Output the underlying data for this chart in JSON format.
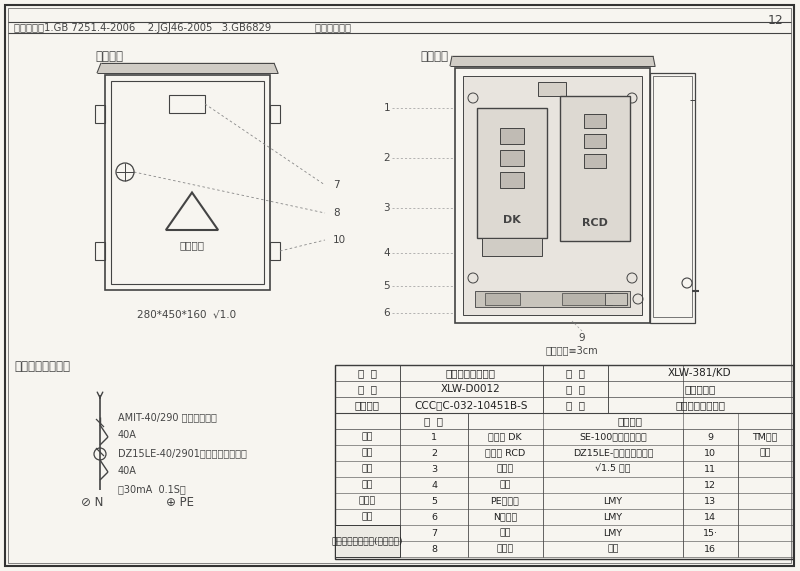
{
  "bg_color": "#f2efe9",
  "paper_color": "#f7f5f0",
  "line_color": "#444444",
  "dim_color": "#555555",
  "title_top": "执行标准：1.GB 7251.4-2006    2.JGJ46-2005   3.GB6829              壳体颜色：黄",
  "page_number": "12",
  "section1_title": "外型图：",
  "section2_title": "装配图：",
  "section3_title": "电器连接原理图：",
  "dim_label": "280*450*160  √1.0",
  "spacing_label": "元件间距≡3cm",
  "circuit_labels": [
    "AMIT-40/290 （透明空开）",
    "40A",
    "DZ15LE-40/2901（透明漏电开关）",
    "40A",
    "（30mA  0.1S）"
  ],
  "table_header": [
    "名  称",
    "建筑施工用配电箱",
    "型  号",
    "XLW-381/KD"
  ],
  "table_row1": [
    "图  号",
    "XLW-D0012",
    "规  格",
    "照明开关箱"
  ],
  "table_row2": [
    "试验报告",
    "CCC：C-032-10451B-S",
    "用  途",
    "施工现场照明配电"
  ],
  "parts_col_header": [
    "序  号",
    "主要配件"
  ],
  "table_parts": [
    [
      "设计",
      "1",
      "断路器 DK",
      "SE-100系列透明开关",
      "9",
      "TM连接"
    ],
    [
      "制图",
      "2",
      "断路器 RCD",
      "DZ15LE-透明系列漏电开",
      "10",
      "排耳"
    ],
    [
      "校核",
      "3",
      "安装板",
      "√1.5 折边",
      "11",
      ""
    ],
    [
      "审核",
      "4",
      "线夹",
      "",
      "12",
      ""
    ],
    [
      "标准化",
      "5",
      "PE线端子",
      "LMY",
      "13",
      ""
    ],
    [
      "日期",
      "6",
      "N线端子",
      "LMY",
      "14",
      ""
    ],
    [
      "",
      "7",
      "标牌",
      "LMY",
      "15·",
      ""
    ],
    [
      "",
      "8",
      "压把锁",
      "防雨",
      "16",
      ""
    ]
  ],
  "company": "哈尔滨市龙瑞电气(成套设备)"
}
